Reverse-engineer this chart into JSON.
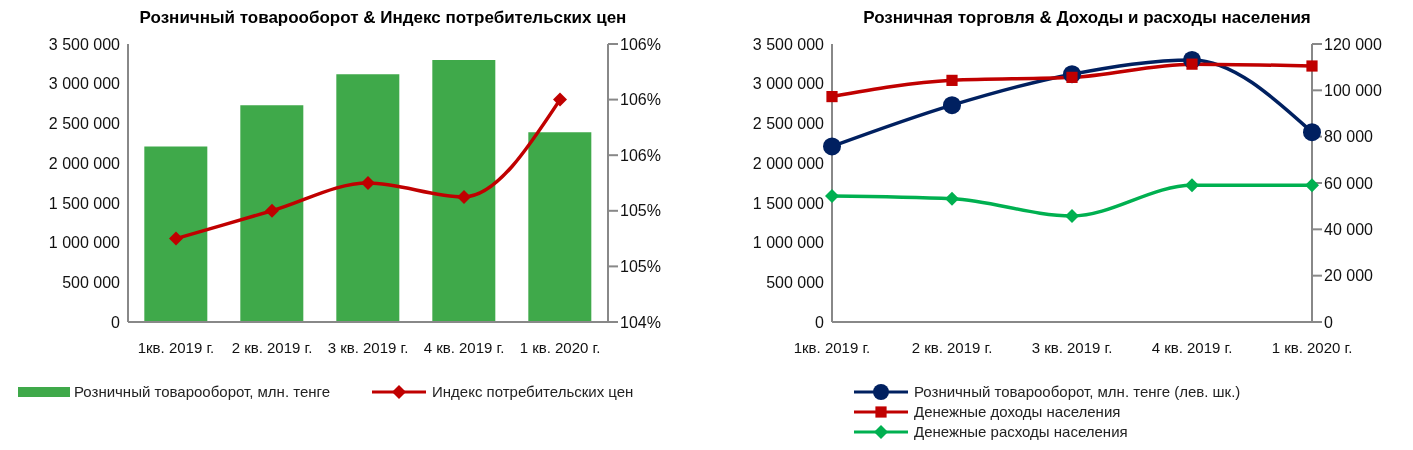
{
  "chart_data": [
    {
      "type": "bar",
      "title": "Розничный товарооборот & Индекс потребительских цен",
      "categories": [
        "1кв. 2019 г.",
        "2 кв. 2019 г.",
        "3 кв. 2019 г.",
        "4 кв. 2019 г.",
        "1 кв. 2020 г."
      ],
      "series": [
        {
          "name": "Розничный товарооборот, млн. тенге",
          "color": "#3fa94a",
          "values": [
            2210000,
            2730000,
            3120000,
            3300000,
            2390000
          ]
        },
        {
          "name": "Индекс потребительских цен",
          "type": "line",
          "axis": "y2",
          "color": "#c00000",
          "marker": "diamond",
          "values": [
            105.0,
            105.2,
            105.4,
            105.3,
            106.0
          ]
        }
      ],
      "ylim": [
        0,
        3500000
      ],
      "yticks": [
        0,
        500000,
        1000000,
        1500000,
        2000000,
        2500000,
        3000000,
        3500000
      ],
      "y2lim": [
        104.4,
        106.4
      ],
      "y2ticks": [
        {
          "value": 104.4,
          "label": "104%"
        },
        {
          "value": 104.8,
          "label": "105%"
        },
        {
          "value": 105.2,
          "label": "105%"
        },
        {
          "value": 105.6,
          "label": "106%"
        },
        {
          "value": 106.0,
          "label": "106%"
        },
        {
          "value": 106.4,
          "label": "106%"
        }
      ],
      "legend": "bottom",
      "grid": false
    },
    {
      "type": "line",
      "title": "Розничная торговля & Доходы и расходы населения",
      "categories": [
        "1кв. 2019 г.",
        "2 кв. 2019 г.",
        "3 кв. 2019 г.",
        "4 кв. 2019 г.",
        "1 кв. 2020 г."
      ],
      "series": [
        {
          "name": "Розничный товарооборот, млн. тенге (лев. шк.)",
          "color": "#002060",
          "marker": "circle",
          "values": [
            2210000,
            2730000,
            3120000,
            3300000,
            2390000
          ]
        },
        {
          "name": "Денежные доходы населения",
          "axis": "y2",
          "color": "#c00000",
          "marker": "square",
          "values": [
            97300,
            104300,
            105600,
            111300,
            110500
          ]
        },
        {
          "name": "Денежные расходы населения",
          "axis": "y2",
          "color": "#00b050",
          "marker": "diamond",
          "values": [
            54400,
            53200,
            45800,
            59000,
            59000
          ]
        }
      ],
      "ylim": [
        0,
        3500000
      ],
      "yticks": [
        0,
        500000,
        1000000,
        1500000,
        2000000,
        2500000,
        3000000,
        3500000
      ],
      "y2lim": [
        0,
        120000
      ],
      "y2ticks": [
        0,
        20000,
        40000,
        60000,
        80000,
        100000,
        120000
      ],
      "legend": "bottom",
      "grid": false
    }
  ]
}
